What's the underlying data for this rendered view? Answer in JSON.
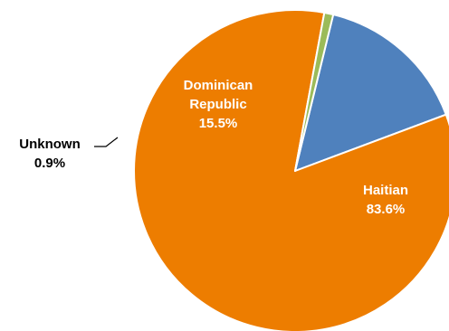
{
  "chart_data": {
    "type": "pie",
    "slices": [
      {
        "label": "Dominican Republic",
        "name_lines": [
          "Dominican",
          "Republic"
        ],
        "value": 15.5,
        "value_label": "15.5%",
        "color": "#4f81bd",
        "label_color": "#ffffff",
        "label_placement": "inside"
      },
      {
        "label": "Haitian",
        "name_lines": [
          "Haitian"
        ],
        "value": 83.6,
        "value_label": "83.6%",
        "color": "#ed7d00",
        "label_color": "#ffffff",
        "label_placement": "inside"
      },
      {
        "label": "Unknown",
        "name_lines": [
          "Unknown"
        ],
        "value": 0.9,
        "value_label": "0.9%",
        "color": "#9bbb59",
        "label_color": "#000000",
        "label_placement": "outside"
      }
    ],
    "title": "",
    "legend": "none"
  }
}
